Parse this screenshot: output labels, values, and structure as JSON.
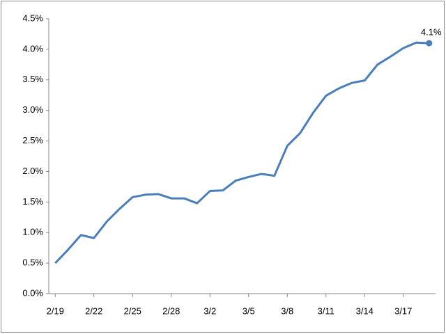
{
  "chart_data": {
    "type": "line",
    "categories": [
      "2/19",
      null,
      null,
      "2/22",
      null,
      null,
      "2/25",
      null,
      null,
      "2/28",
      null,
      null,
      "3/2",
      null,
      null,
      "3/5",
      null,
      null,
      "3/8",
      null,
      null,
      "3/11",
      null,
      null,
      "3/14",
      null,
      null,
      "3/17",
      null,
      null
    ],
    "values": [
      0.5,
      0.72,
      0.96,
      0.91,
      1.18,
      1.39,
      1.58,
      1.62,
      1.63,
      1.56,
      1.56,
      1.48,
      1.68,
      1.69,
      1.85,
      1.91,
      1.96,
      1.93,
      2.42,
      2.63,
      2.96,
      3.24,
      3.36,
      3.45,
      3.49,
      3.75,
      3.88,
      4.02,
      4.11,
      4.1
    ],
    "value_labels": [
      null,
      null,
      null,
      null,
      null,
      null,
      null,
      null,
      null,
      null,
      null,
      null,
      null,
      null,
      null,
      null,
      null,
      null,
      null,
      null,
      null,
      null,
      null,
      null,
      null,
      null,
      null,
      null,
      null,
      "4.1%"
    ],
    "color": "#4a7ebb",
    "ylim": [
      0,
      4.5
    ],
    "yticks": [
      {
        "value": 0,
        "label": "0.0%"
      },
      {
        "value": 0.5,
        "label": "0.5%"
      },
      {
        "value": 1,
        "label": "1.0%"
      },
      {
        "value": 1.5,
        "label": "1.5%"
      },
      {
        "value": 2,
        "label": "2.0%"
      },
      {
        "value": 2.5,
        "label": "2.5%"
      },
      {
        "value": 3,
        "label": "3.0%"
      },
      {
        "value": 3.5,
        "label": "3.5%"
      },
      {
        "value": 4,
        "label": "4.0%"
      },
      {
        "value": 4.5,
        "label": "4.5%"
      }
    ],
    "grid": false
  }
}
